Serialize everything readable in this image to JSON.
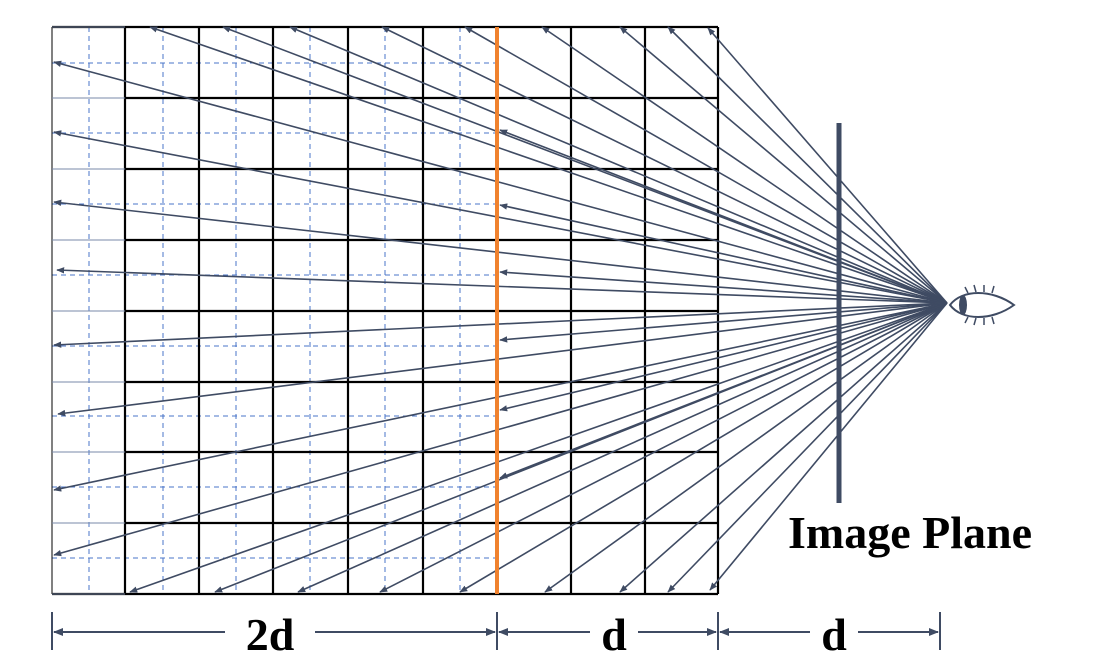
{
  "labels": {
    "image_plane": "Image Plane",
    "dim_left": "2d",
    "dim_middle": "d",
    "dim_right": "d"
  },
  "colors": {
    "grid_solid": "#000000",
    "grid_dashed": "#4a74c9",
    "ray": "#3f4b63",
    "highlight_plane": "#f0822e",
    "image_plane": "#3f4b63",
    "dimension": "#3f4b63"
  },
  "icons": {
    "viewer": "eye-icon"
  }
}
